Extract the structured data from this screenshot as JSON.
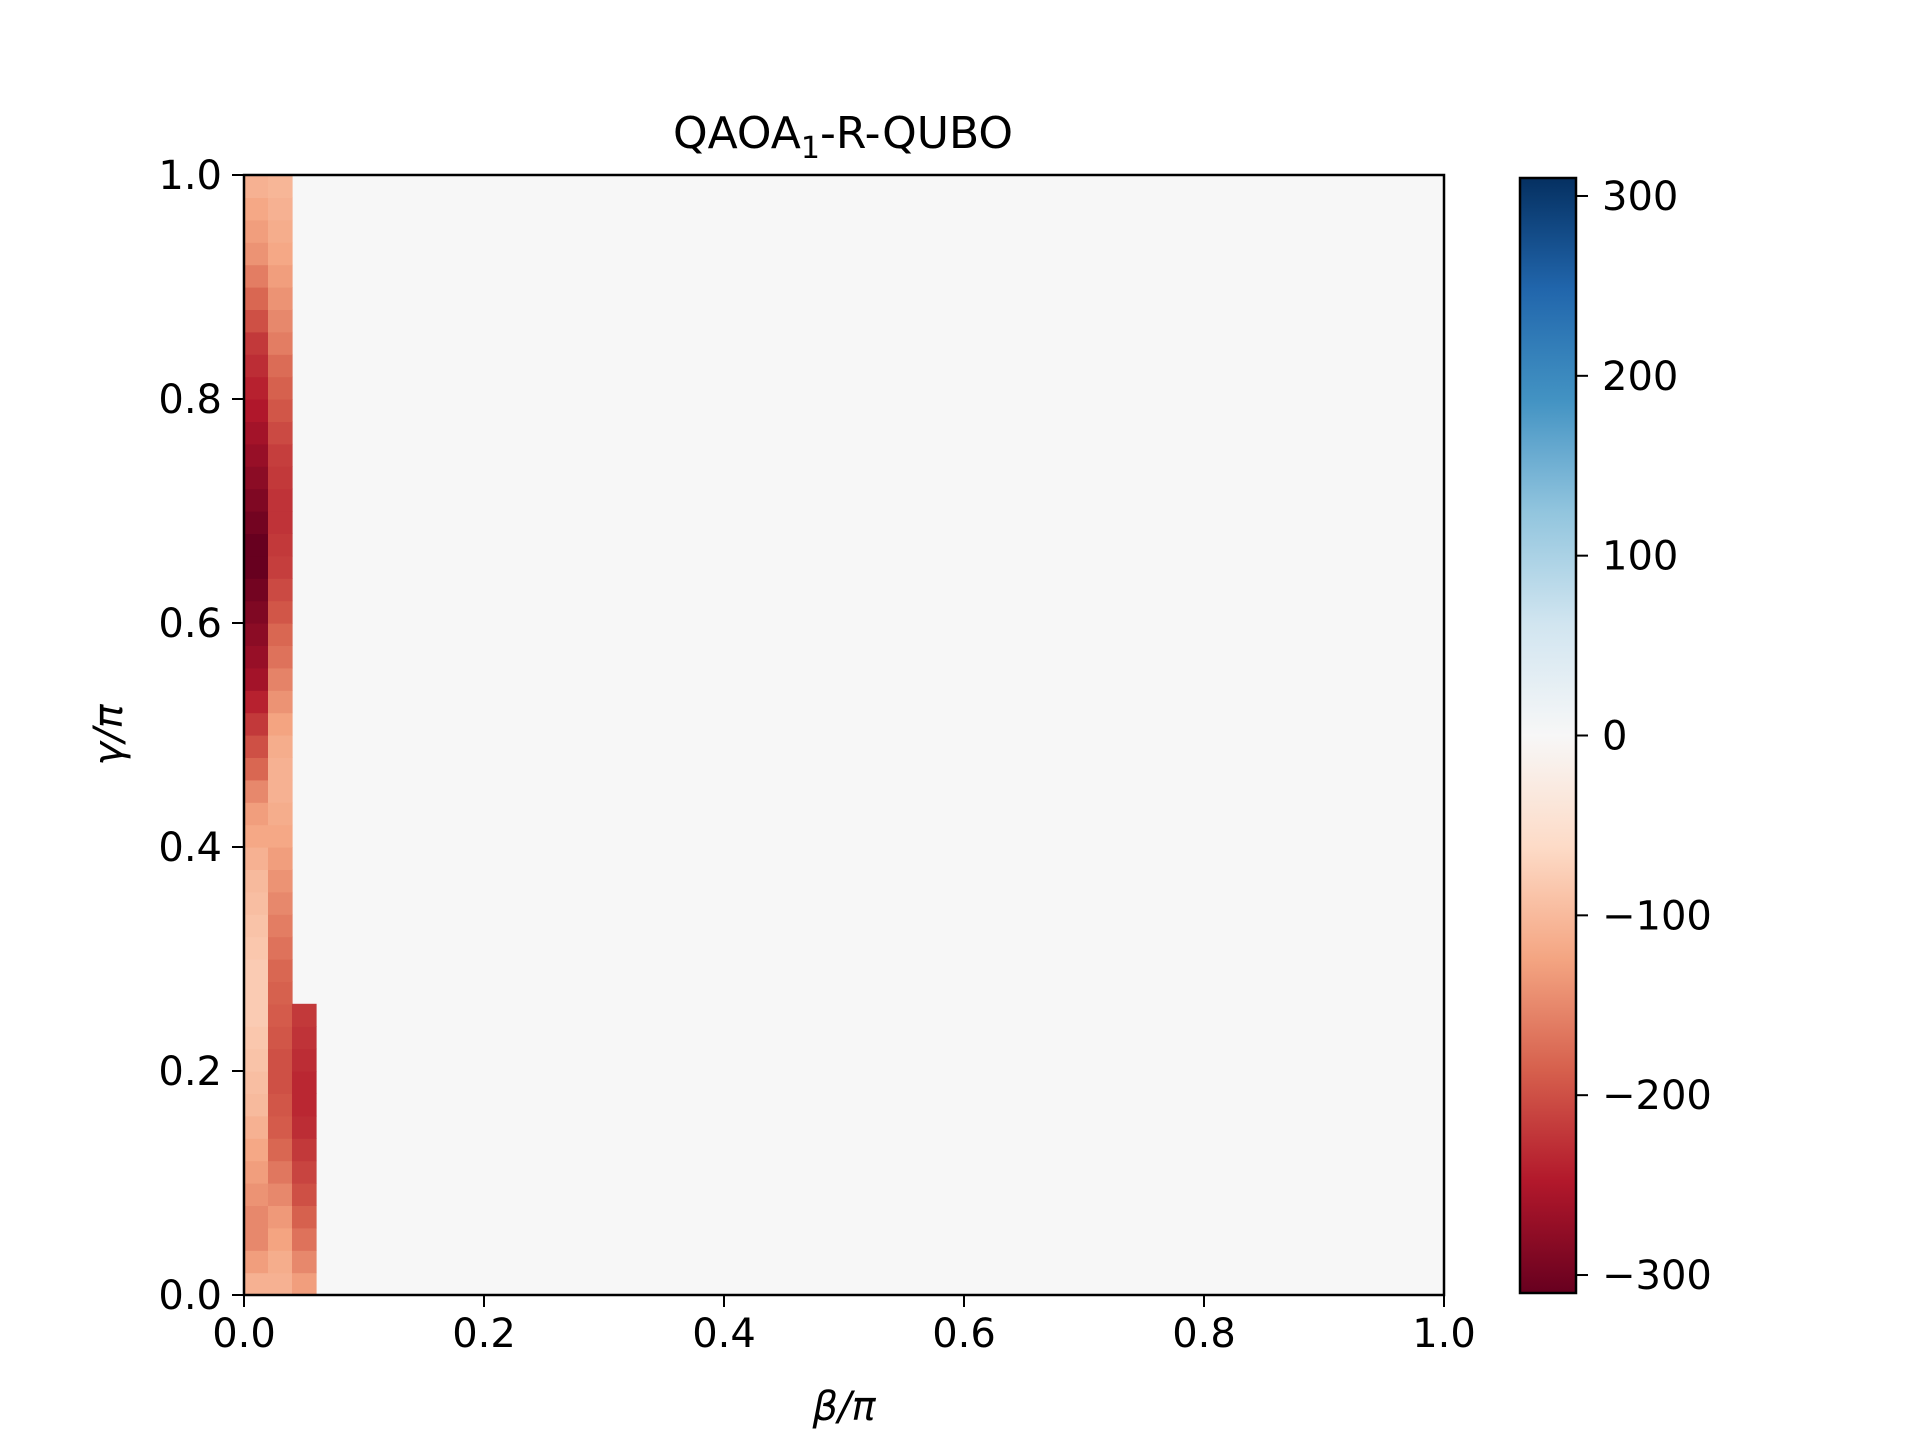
{
  "chart_data": {
    "type": "heatmap",
    "title": "QAOA",
    "title_subscript": "1",
    "title_suffix": "-R-QUBO",
    "xlabel": "β/π",
    "ylabel": "γ/π",
    "xlim": [
      0.0,
      1.0
    ],
    "ylim": [
      0.0,
      1.0
    ],
    "x_ticks": [
      "0.0",
      "0.2",
      "0.4",
      "0.6",
      "0.8",
      "1.0"
    ],
    "y_ticks": [
      "0.0",
      "0.2",
      "0.4",
      "0.6",
      "0.8",
      "1.0"
    ],
    "grid_resolution": 50,
    "background_value": 0,
    "colormap": "RdBu",
    "colorbar": {
      "vmin": -310,
      "vmax": 310,
      "ticks": [
        "300",
        "200",
        "100",
        "0",
        "−100",
        "−200",
        "−300"
      ],
      "tick_values": [
        300,
        200,
        100,
        0,
        -100,
        -200,
        -300
      ]
    },
    "columns": [
      {
        "beta_index": 0,
        "values_bottom_to_top": [
          -110,
          -130,
          -150,
          -150,
          -140,
          -130,
          -120,
          -110,
          -100,
          -95,
          -90,
          -85,
          -80,
          -80,
          -80,
          -85,
          -90,
          -95,
          -100,
          -110,
          -120,
          -130,
          -150,
          -180,
          -200,
          -220,
          -240,
          -260,
          -270,
          -280,
          -290,
          -300,
          -310,
          -310,
          -300,
          -290,
          -280,
          -270,
          -260,
          -250,
          -240,
          -230,
          -220,
          -200,
          -180,
          -160,
          -140,
          -130,
          -120,
          -110
        ]
      },
      {
        "beta_index": 1,
        "values_bottom_to_top": [
          -110,
          -115,
          -125,
          -135,
          -150,
          -165,
          -180,
          -190,
          -195,
          -200,
          -200,
          -195,
          -190,
          -185,
          -180,
          -170,
          -160,
          -150,
          -140,
          -130,
          -120,
          -115,
          -110,
          -110,
          -115,
          -125,
          -140,
          -155,
          -170,
          -180,
          -195,
          -205,
          -215,
          -220,
          -225,
          -225,
          -220,
          -215,
          -205,
          -195,
          -185,
          -175,
          -160,
          -150,
          -140,
          -130,
          -120,
          -115,
          -110,
          -105
        ]
      },
      {
        "beta_index": 2,
        "values_bottom_to_top": [
          -130,
          -150,
          -170,
          -185,
          -200,
          -210,
          -220,
          -230,
          -235,
          -235,
          -230,
          -225,
          -220,
          0,
          0,
          0,
          0,
          0,
          0,
          0,
          0,
          0,
          0,
          0,
          0,
          0,
          0,
          0,
          0,
          0,
          0,
          0,
          0,
          0,
          0,
          0,
          0,
          0,
          0,
          0,
          0,
          0,
          0,
          0,
          0,
          0,
          0,
          0,
          0,
          0
        ]
      }
    ]
  }
}
